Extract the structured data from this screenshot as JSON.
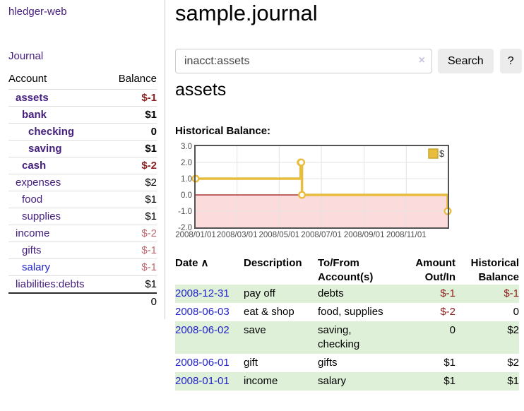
{
  "app": {
    "title": "hledger-web"
  },
  "sidebar": {
    "journal_label": "Journal",
    "accounts_table": {
      "headers": {
        "account": "Account",
        "balance": "Balance"
      },
      "items": [
        {
          "name": "assets",
          "indent": 1,
          "bold": true,
          "balance": "$-1",
          "balance_class": "neg"
        },
        {
          "name": "bank",
          "indent": 2,
          "bold": true,
          "balance": "$1",
          "balance_class": "pos"
        },
        {
          "name": "checking",
          "indent": 3,
          "bold": true,
          "balance": "0",
          "balance_class": "pos"
        },
        {
          "name": "saving",
          "indent": 3,
          "bold": true,
          "balance": "$1",
          "balance_class": "pos"
        },
        {
          "name": "cash",
          "indent": 2,
          "bold": true,
          "balance": "$-2",
          "balance_class": "neg"
        },
        {
          "name": "expenses",
          "indent": 1,
          "bold": false,
          "balance": "$2",
          "balance_class": "pos"
        },
        {
          "name": "food",
          "indent": 2,
          "bold": false,
          "balance": "$1",
          "balance_class": "pos"
        },
        {
          "name": "supplies",
          "indent": 2,
          "bold": false,
          "balance": "$1",
          "balance_class": "pos"
        },
        {
          "name": "income",
          "indent": 1,
          "bold": false,
          "balance": "$-2",
          "balance_class": "negfaded"
        },
        {
          "name": "gifts",
          "indent": 2,
          "bold": false,
          "balance": "$-1",
          "balance_class": "negfaded"
        },
        {
          "name": "salary",
          "indent": 2,
          "bold": false,
          "balance": "$-1",
          "balance_class": "negfaded",
          "link_blue": true
        },
        {
          "name": "liabilities:debts",
          "indent": 1,
          "bold": false,
          "balance": "$1",
          "balance_class": "pos"
        }
      ],
      "total": "0"
    }
  },
  "main": {
    "title": "sample.journal",
    "search": {
      "value": "inacct:assets",
      "clear_icon": "×",
      "button_label": "Search",
      "help_label": "?"
    },
    "account_heading": "assets",
    "chart_heading": "Historical Balance:",
    "register": {
      "headers": {
        "date": "Date",
        "sort_icon": "∧",
        "description": "Description",
        "accounts_line1": "To/From",
        "accounts_line2": "Account(s)",
        "amount_line1": "Amount",
        "amount_line2": "Out/In",
        "balance_line1": "Historical",
        "balance_line2": "Balance"
      },
      "rows": [
        {
          "date": "2008-12-31",
          "description": "pay off",
          "accounts": "debts",
          "amount": "$-1",
          "amount_neg": true,
          "balance": "$-1",
          "balance_neg": true
        },
        {
          "date": "2008-06-03",
          "description": "eat & shop",
          "accounts": "food, supplies",
          "amount": "$-2",
          "amount_neg": true,
          "balance": "0",
          "balance_neg": false
        },
        {
          "date": "2008-06-02",
          "description": "save",
          "accounts": "saving, checking",
          "amount": "0",
          "amount_neg": false,
          "balance": "$2",
          "balance_neg": false
        },
        {
          "date": "2008-06-01",
          "description": "gift",
          "accounts": "gifts",
          "amount": "$1",
          "amount_neg": false,
          "balance": "$2",
          "balance_neg": false
        },
        {
          "date": "2008-01-01",
          "description": "income",
          "accounts": "salary",
          "amount": "$1",
          "amount_neg": false,
          "balance": "$1",
          "balance_neg": false
        }
      ]
    }
  },
  "chart_data": {
    "type": "line",
    "step": true,
    "title": "Historical Balance",
    "series": [
      {
        "name": "$",
        "color": "#e8bc3d",
        "points": [
          [
            "2008-01-01",
            1.0
          ],
          [
            "2008-06-01",
            2.0
          ],
          [
            "2008-06-02",
            2.0
          ],
          [
            "2008-06-03",
            0.0
          ],
          [
            "2008-12-31",
            -1.0
          ]
        ]
      }
    ],
    "x_range": [
      "2008-01-01",
      "2008-12-31"
    ],
    "x_ticks": [
      "2008/01/01",
      "2008/03/01",
      "2008/05/01",
      "2008/07/01",
      "2008/09/01",
      "2008/11/01"
    ],
    "y_ticks": [
      "3.0",
      "2.0",
      "1.0",
      "0.0",
      "-1.0",
      "-2.0"
    ],
    "ylim": [
      -2.0,
      3.0
    ],
    "grid": true,
    "legend": {
      "label": "$",
      "position": "top-right"
    }
  },
  "colors": {
    "link_purple": "#46207e",
    "link_blue": "#2222cc",
    "negative_red": "#8b1e1e",
    "faded_red": "#c0696e",
    "row_stripe_green": "#dff0d8",
    "chart_line_gold": "#e8bc3d",
    "chart_negative_fill": "#fbdbdb",
    "chart_zero_line": "#991111",
    "chart_frame": "#545454",
    "gridline": "#e3e3e3",
    "button_gray": "#ececec"
  }
}
